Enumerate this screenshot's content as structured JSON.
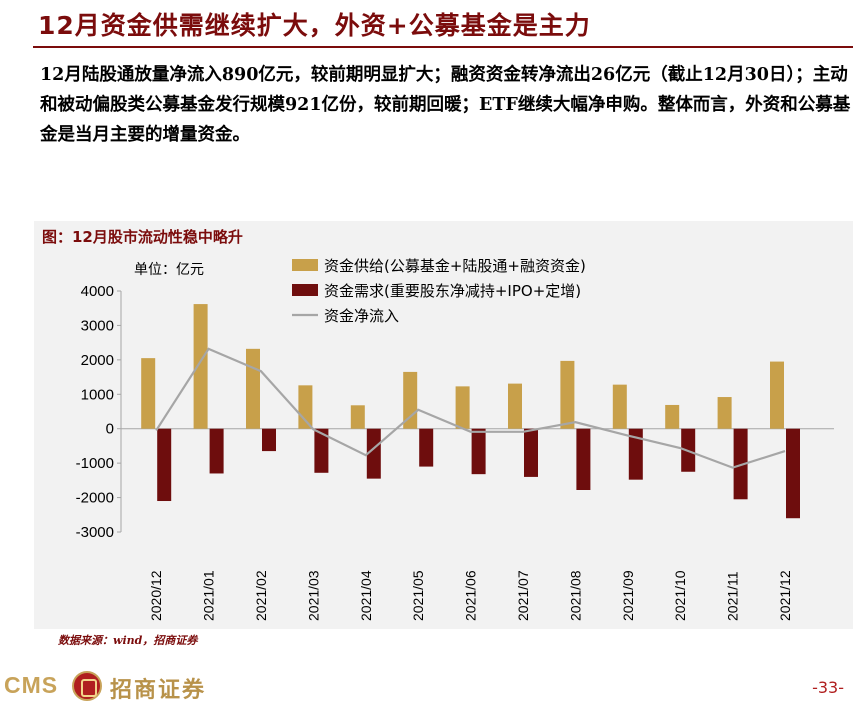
{
  "header": {
    "title": "12月资金供需继续扩大，外资+公募基金是主力"
  },
  "summary": {
    "text": "12月陆股通放量净流入890亿元，较前期明显扩大；融资资金转净流出26亿元（截止12月30日）；主动和被动偏股类公募基金发行规模921亿份，较前期回暖；ETF继续大幅净申购。整体而言，外资和公募基金是当月主要的增量资金。"
  },
  "figure": {
    "caption": "图：12月股市流动性稳中略升",
    "source": "数据来源：wind，招商证券"
  },
  "footer": {
    "logo_text_en": "CMS",
    "logo_text_cn": "招商证券",
    "page_number": "-33-"
  },
  "colors": {
    "supply": "#c8a04a",
    "demand": "#6e0d0d",
    "net": "#a6a6a6",
    "title": "#7b0c0c"
  },
  "chart_data": {
    "type": "bar",
    "unit_label": "单位：亿元",
    "categories": [
      "2020/12",
      "2021/01",
      "2021/02",
      "2021/03",
      "2021/04",
      "2021/05",
      "2021/06",
      "2021/07",
      "2021/08",
      "2021/09",
      "2021/10",
      "2021/11",
      "2021/12"
    ],
    "series": [
      {
        "name": "资金供给(公募基金+陆股通+融资资金)",
        "kind": "bar",
        "values": [
          2050,
          3620,
          2320,
          1260,
          680,
          1650,
          1230,
          1310,
          1970,
          1280,
          690,
          920,
          1950
        ]
      },
      {
        "name": "资金需求(重要股东净减持+IPO+定增)",
        "kind": "bar",
        "values": [
          -2100,
          -1300,
          -650,
          -1280,
          -1450,
          -1100,
          -1320,
          -1400,
          -1780,
          -1480,
          -1250,
          -2050,
          -2600
        ]
      },
      {
        "name": "资金净流入",
        "kind": "line",
        "values": [
          -50,
          2320,
          1670,
          -20,
          -770,
          550,
          -90,
          -90,
          190,
          -200,
          -560,
          -1130,
          -650
        ]
      }
    ],
    "ylim": [
      -3000,
      4000
    ],
    "yticks": [
      4000,
      3000,
      2000,
      1000,
      0,
      -1000,
      -2000,
      -3000
    ],
    "legend_position": "top",
    "grid": false
  }
}
